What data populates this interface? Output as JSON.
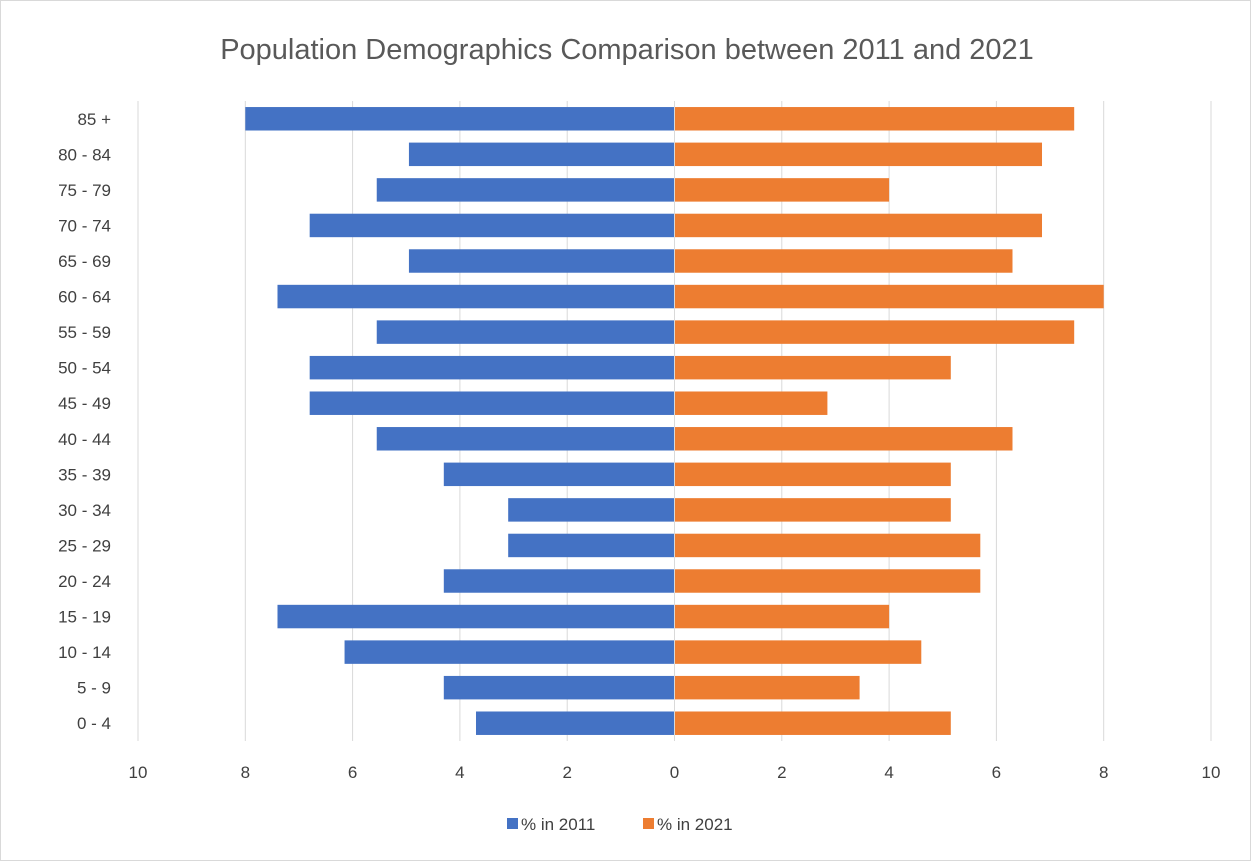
{
  "chart_data": {
    "type": "bar",
    "orientation": "horizontal",
    "layout": "population-pyramid",
    "title": "Population Demographics Comparison between 2011 and 2021",
    "categories": [
      "0 - 4",
      "5 - 9",
      "10 - 14",
      "15 - 19",
      "20 - 24",
      "25 - 29",
      "30 - 34",
      "35 - 39",
      "40 - 44",
      "45 - 49",
      "50 - 54",
      "55 - 59",
      "60 - 64",
      "65 - 69",
      "70 - 74",
      "75 - 79",
      "80 - 84",
      "85 +"
    ],
    "series": [
      {
        "name": "% in 2011",
        "side": "left",
        "color": "#4472C4",
        "values": [
          3.7,
          4.3,
          6.15,
          7.4,
          4.3,
          3.1,
          3.1,
          4.3,
          5.55,
          6.8,
          6.8,
          5.55,
          7.4,
          4.95,
          6.8,
          5.55,
          4.95,
          8.0
        ]
      },
      {
        "name": "% in 2021",
        "side": "right",
        "color": "#ED7D31",
        "values": [
          5.15,
          3.45,
          4.6,
          4.0,
          5.7,
          5.7,
          5.15,
          5.15,
          6.3,
          2.85,
          5.15,
          7.45,
          8.0,
          6.3,
          6.85,
          4.0,
          6.85,
          7.45
        ]
      }
    ],
    "x_ticks": [
      "10",
      "8",
      "6",
      "4",
      "2",
      "0",
      "2",
      "4",
      "6",
      "8",
      "10"
    ],
    "xlim": [
      -10,
      10
    ],
    "grid": "vertical",
    "legend_position": "bottom"
  }
}
